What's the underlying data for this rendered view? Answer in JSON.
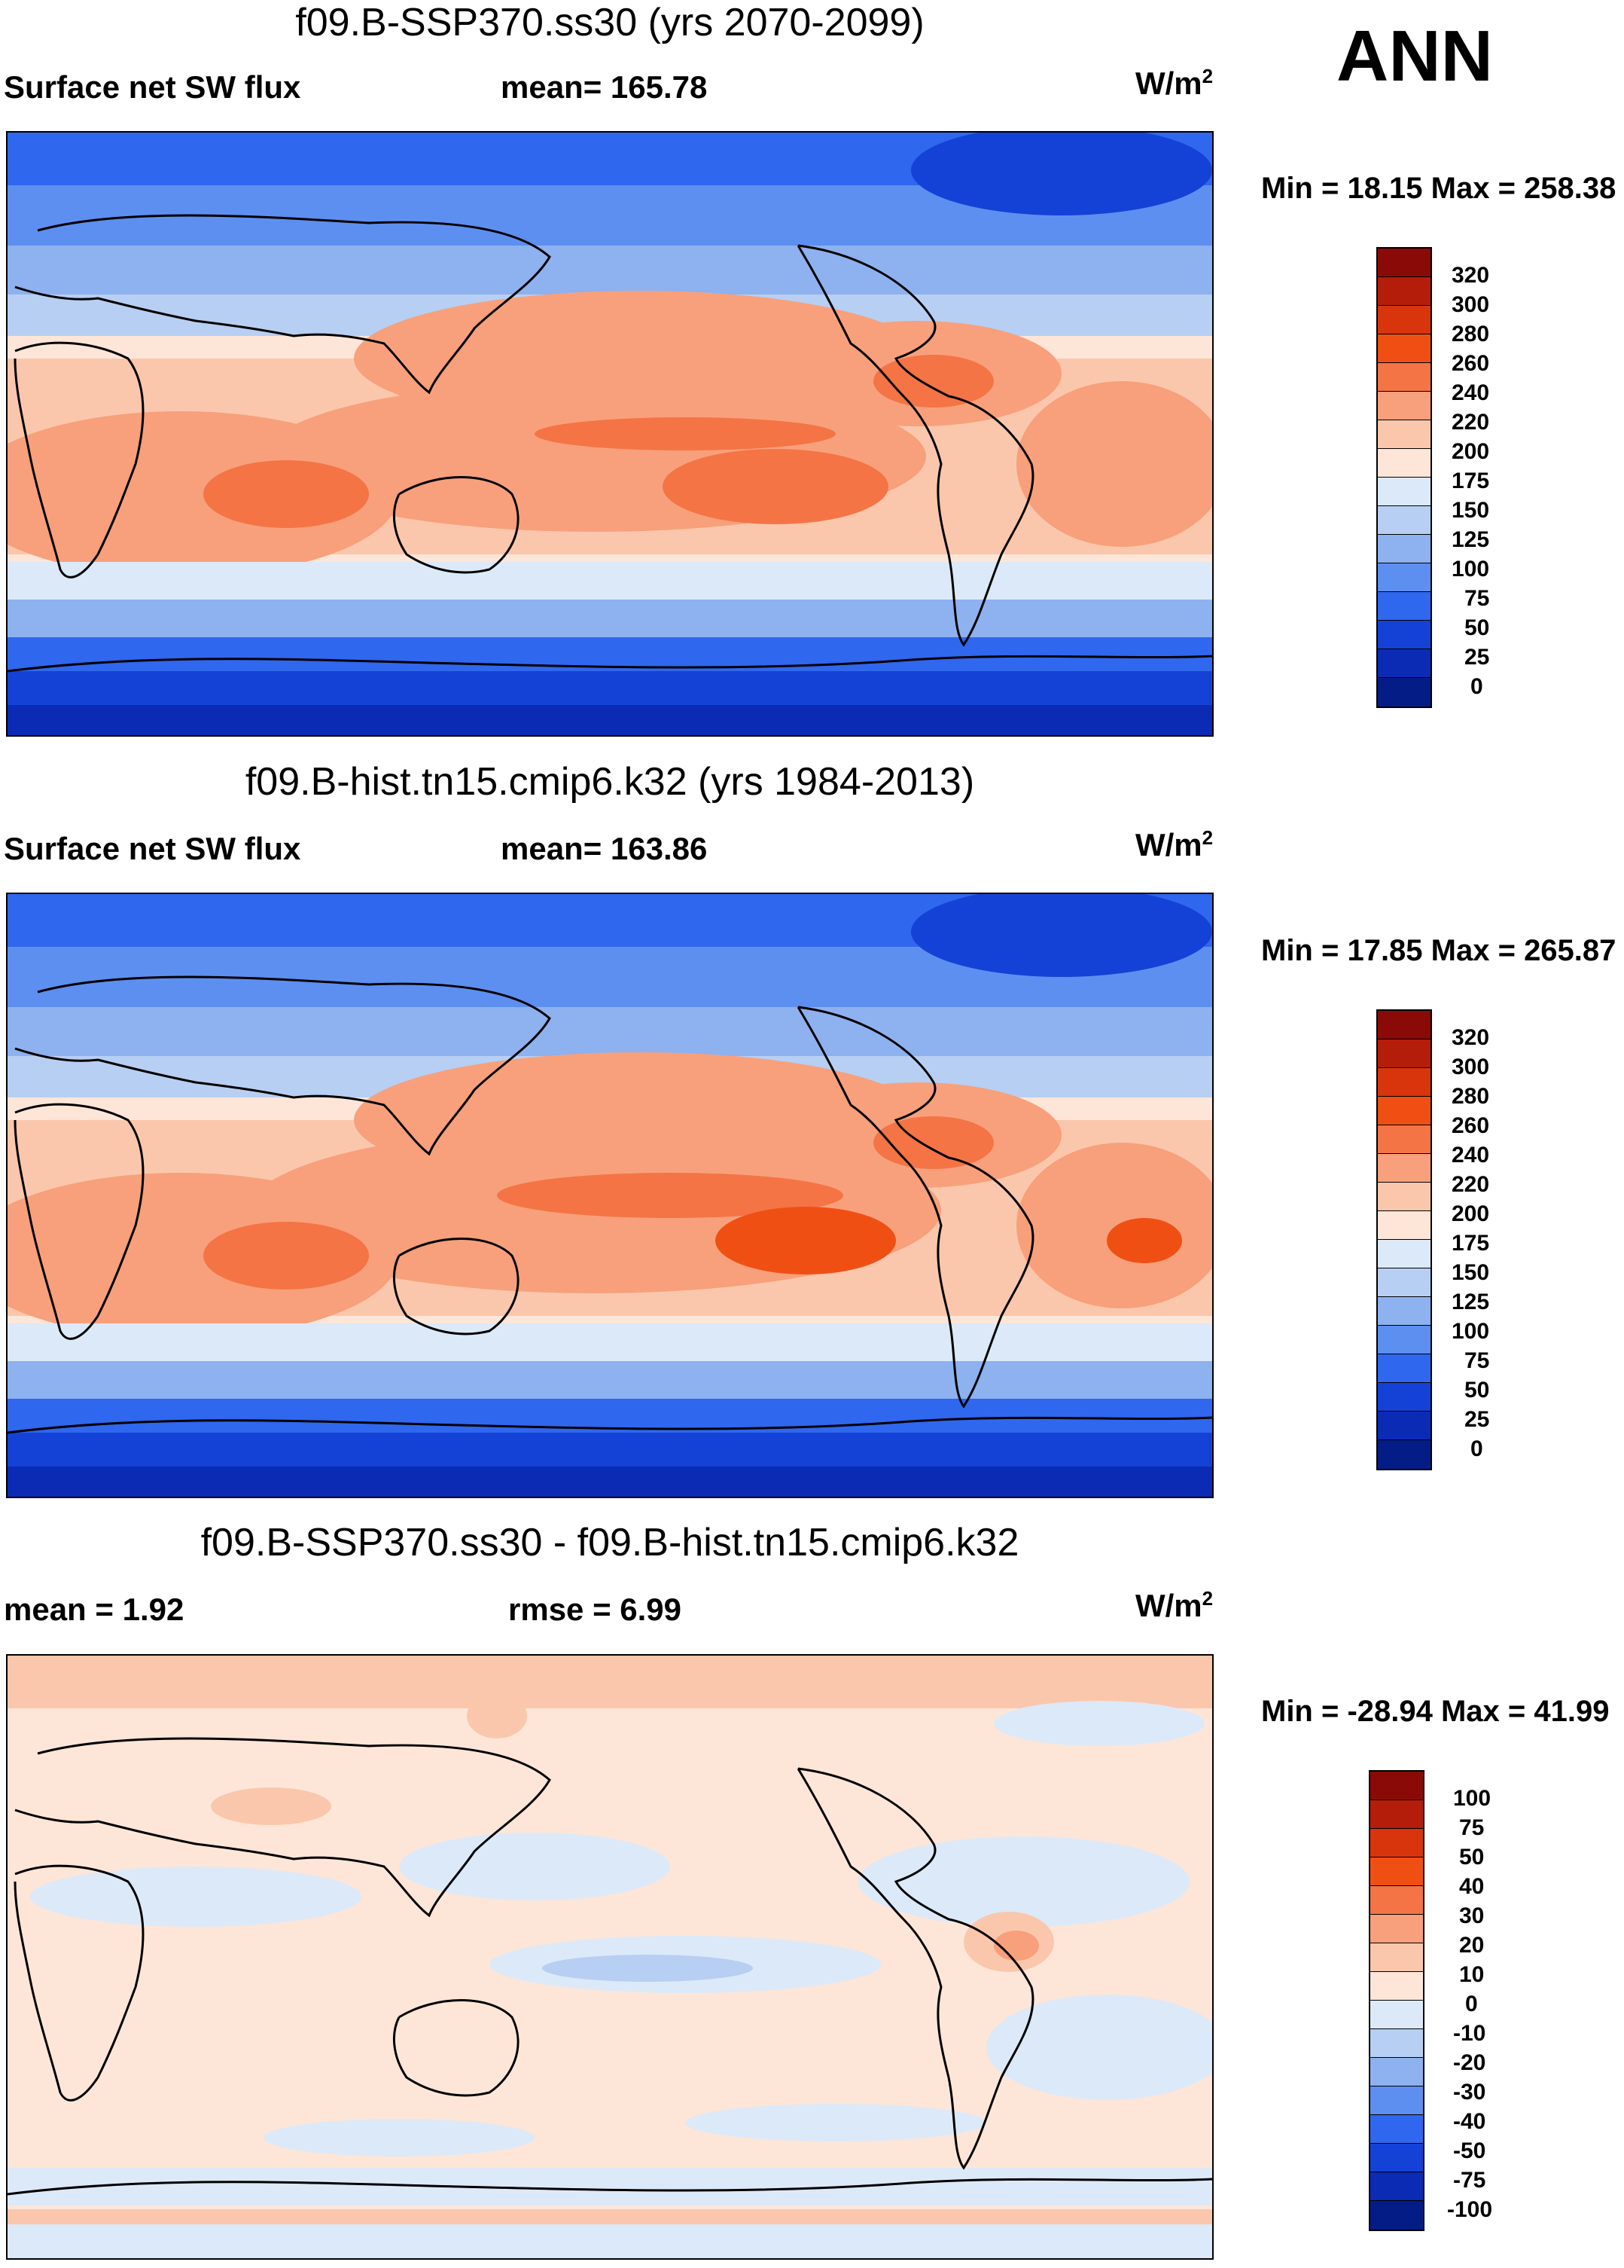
{
  "season": "ANN",
  "panels": [
    {
      "id": "test",
      "title": "f09.B-SSP370.ss30 (yrs 2070-2099)",
      "left_label": "Surface net SW flux",
      "mid_label": "mean= 165.78",
      "units": "W/m",
      "units_sup": "2",
      "minmax": "Min =  18.15 Max = 258.38",
      "colorbar": {
        "labels": [
          "320",
          "300",
          "280",
          "260",
          "240",
          "220",
          "200",
          "175",
          "150",
          "125",
          "100",
          "75",
          "50",
          "25",
          "0"
        ],
        "colors": [
          "#8a0a07",
          "#b41d0a",
          "#d9350c",
          "#f04f14",
          "#f47446",
          "#f8a07b",
          "#fbc7ac",
          "#fde6d8",
          "#dce9f8",
          "#b7cff2",
          "#8eb1ef",
          "#5d8ff0",
          "#2f67ee",
          "#1442d6",
          "#0b2bb5",
          "#041c86"
        ]
      }
    },
    {
      "id": "ctrl",
      "title": "f09.B-hist.tn15.cmip6.k32 (yrs 1984-2013)",
      "left_label": "Surface net SW flux",
      "mid_label": "mean= 163.86",
      "units": "W/m",
      "units_sup": "2",
      "minmax": "Min =  17.85 Max = 265.87",
      "colorbar": {
        "labels": [
          "320",
          "300",
          "280",
          "260",
          "240",
          "220",
          "200",
          "175",
          "150",
          "125",
          "100",
          "75",
          "50",
          "25",
          "0"
        ],
        "colors": [
          "#8a0a07",
          "#b41d0a",
          "#d9350c",
          "#f04f14",
          "#f47446",
          "#f8a07b",
          "#fbc7ac",
          "#fde6d8",
          "#dce9f8",
          "#b7cff2",
          "#8eb1ef",
          "#5d8ff0",
          "#2f67ee",
          "#1442d6",
          "#0b2bb5",
          "#041c86"
        ]
      }
    },
    {
      "id": "diff",
      "title": "f09.B-SSP370.ss30 - f09.B-hist.tn15.cmip6.k32",
      "left_label": "mean =   1.92",
      "mid_label": "rmse =   6.99",
      "units": "W/m",
      "units_sup": "2",
      "minmax": "Min = -28.94 Max =  41.99",
      "colorbar": {
        "labels": [
          "100",
          "75",
          "50",
          "40",
          "30",
          "20",
          "10",
          "0",
          "-10",
          "-20",
          "-30",
          "-40",
          "-50",
          "-75",
          "-100"
        ],
        "colors": [
          "#8a0a07",
          "#b41d0a",
          "#d9350c",
          "#f04f14",
          "#f47446",
          "#f8a07b",
          "#fbc7ac",
          "#fde6d8",
          "#dce9f8",
          "#b7cff2",
          "#8eb1ef",
          "#5d8ff0",
          "#2f67ee",
          "#1442d6",
          "#0b2bb5",
          "#041c86"
        ]
      }
    }
  ]
}
